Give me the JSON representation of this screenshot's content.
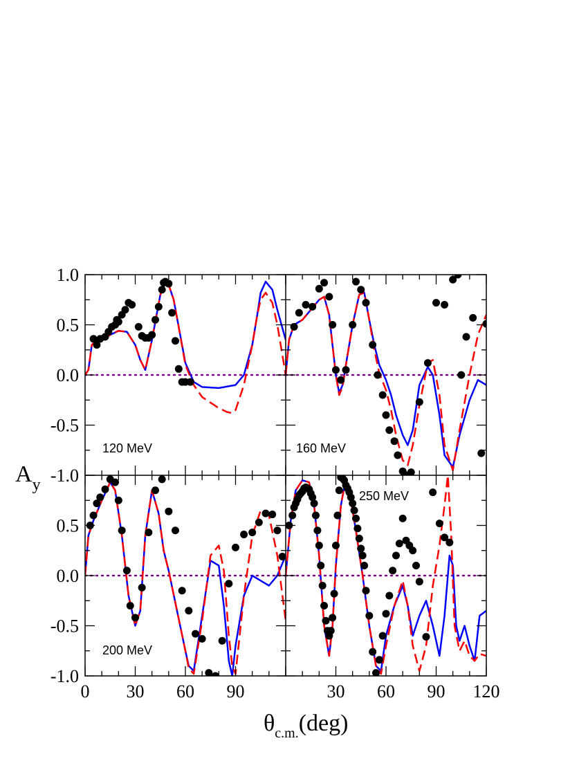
{
  "chart_data": {
    "type": "line",
    "xlabel": "θc.m.(deg)",
    "xlabel_main": "θ",
    "xlabel_sub": "c.m.",
    "xlabel_unit": "(deg)",
    "ylabel": "Ay",
    "ylabel_main": "A",
    "ylabel_sub": "y",
    "xlim": [
      0,
      120
    ],
    "ylim": [
      -1.0,
      1.0
    ],
    "x_tick_labels": [
      "0",
      "30",
      "60",
      "90",
      "120"
    ],
    "y_tick_labels": [
      "1.0",
      "0.5",
      "0.0",
      "-0.5",
      "-1.0"
    ],
    "layout": "2x2 shared axes",
    "panels": [
      {
        "label": "120 MeV",
        "series": [
          {
            "style": "solid",
            "color": "#0000ff",
            "x": [
              0,
              2,
              4,
              6,
              10,
              15,
              20,
              25,
              30,
              33,
              36,
              40,
              45,
              48,
              50,
              53,
              56,
              60,
              65,
              70,
              80,
              90,
              95,
              100,
              103,
              105,
              108,
              112,
              115,
              120
            ],
            "y": [
              0,
              0.05,
              0.3,
              0.33,
              0.35,
              0.4,
              0.44,
              0.43,
              0.3,
              0.15,
              0.05,
              0.35,
              0.8,
              0.92,
              0.9,
              0.75,
              0.48,
              0.12,
              -0.07,
              -0.12,
              -0.13,
              -0.1,
              0,
              0.3,
              0.6,
              0.82,
              0.93,
              0.85,
              0.65,
              0.35
            ]
          },
          {
            "style": "dashed",
            "color": "#ff0000",
            "x": [
              0,
              2,
              4,
              6,
              10,
              15,
              20,
              25,
              30,
              33,
              36,
              40,
              45,
              48,
              50,
              53,
              56,
              60,
              65,
              70,
              80,
              85,
              88,
              90,
              95,
              100,
              103,
              105,
              108,
              112,
              115,
              120
            ],
            "y": [
              0,
              0.05,
              0.3,
              0.33,
              0.35,
              0.4,
              0.44,
              0.43,
              0.3,
              0.15,
              0.05,
              0.35,
              0.8,
              0.92,
              0.9,
              0.75,
              0.48,
              0.1,
              -0.1,
              -0.22,
              -0.33,
              -0.37,
              -0.38,
              -0.35,
              -0.1,
              0.3,
              0.6,
              0.75,
              0.82,
              0.72,
              0.5,
              0.0
            ]
          },
          {
            "style": "points",
            "color": "#000000",
            "x": [
              5,
              7,
              9,
              12,
              14,
              16,
              18,
              19,
              20,
              22,
              24,
              26,
              28,
              32,
              34,
              36,
              38,
              40,
              42,
              44,
              46,
              47,
              48,
              50,
              52,
              54,
              56,
              58,
              60,
              63
            ],
            "y": [
              0.36,
              0.3,
              0.36,
              0.38,
              0.43,
              0.48,
              0.5,
              0.55,
              0.53,
              0.6,
              0.65,
              0.72,
              0.7,
              0.48,
              0.39,
              0.37,
              0.37,
              0.4,
              0.55,
              0.68,
              0.85,
              0.92,
              0.93,
              0.91,
              0.62,
              0.34,
              0.06,
              -0.07,
              -0.07,
              -0.07
            ]
          }
        ]
      },
      {
        "label": "160 MeV",
        "series": [
          {
            "style": "solid",
            "color": "#0000ff",
            "x": [
              0,
              2,
              5,
              10,
              15,
              20,
              23,
              26,
              30,
              32,
              34,
              37,
              40,
              44,
              47,
              50,
              53,
              56,
              60,
              63,
              66,
              70,
              73,
              76,
              80,
              85,
              88,
              92,
              95,
              100,
              104,
              110,
              115,
              120
            ],
            "y": [
              0,
              0.35,
              0.5,
              0.55,
              0.65,
              0.75,
              0.78,
              0.6,
              0.0,
              -0.18,
              -0.1,
              0.2,
              0.5,
              0.8,
              0.82,
              0.55,
              0.3,
              0.1,
              -0.05,
              -0.2,
              -0.4,
              -0.6,
              -0.7,
              -0.55,
              -0.1,
              0.08,
              0.0,
              -0.4,
              -0.8,
              -0.92,
              -0.6,
              -0.25,
              -0.05,
              -0.1
            ]
          },
          {
            "style": "dashed",
            "color": "#ff0000",
            "x": [
              0,
              2,
              5,
              10,
              15,
              20,
              23,
              26,
              30,
              32,
              34,
              37,
              40,
              44,
              47,
              50,
              53,
              56,
              60,
              63,
              66,
              70,
              73,
              76,
              80,
              85,
              88,
              92,
              95,
              100,
              104,
              110,
              115,
              120
            ],
            "y": [
              0,
              0.35,
              0.5,
              0.55,
              0.65,
              0.75,
              0.78,
              0.6,
              0.0,
              -0.2,
              -0.12,
              0.2,
              0.5,
              0.8,
              0.82,
              0.55,
              0.25,
              0.02,
              -0.15,
              -0.35,
              -0.6,
              -0.85,
              -0.9,
              -0.7,
              -0.3,
              0.12,
              0.15,
              -0.2,
              -0.7,
              -0.95,
              -0.55,
              0.0,
              0.4,
              0.6
            ]
          },
          {
            "style": "points",
            "color": "#000000",
            "x": [
              5,
              8,
              12,
              16,
              20,
              23,
              26,
              28,
              30,
              33,
              36,
              40,
              42,
              45,
              48,
              52,
              55,
              58,
              60,
              62,
              65,
              67,
              70,
              72,
              75,
              80,
              85,
              90,
              95,
              100,
              103,
              105,
              108,
              112,
              117,
              120
            ],
            "y": [
              0.48,
              0.62,
              0.7,
              0.68,
              0.86,
              0.92,
              0.78,
              0.5,
              0.05,
              -0.05,
              0.05,
              0.5,
              0.93,
              0.85,
              0.72,
              0.3,
              0.0,
              -0.2,
              -0.4,
              -0.55,
              -0.66,
              -0.8,
              -0.96,
              -1.0,
              -0.97,
              -0.27,
              0.12,
              0.72,
              0.7,
              0.95,
              1.0,
              0.0,
              0.38,
              0.57,
              -0.78,
              0.51
            ]
          }
        ]
      },
      {
        "label": "200 MeV",
        "series": [
          {
            "style": "solid",
            "color": "#0000ff",
            "x": [
              0,
              2,
              5,
              10,
              15,
              18,
              22,
              26,
              30,
              33,
              36,
              40,
              44,
              47,
              50,
              55,
              60,
              62,
              65,
              70,
              75,
              80,
              83,
              86,
              88,
              90,
              95,
              100,
              105,
              110,
              115,
              120
            ],
            "y": [
              0,
              0.4,
              0.55,
              0.75,
              0.93,
              0.85,
              0.4,
              -0.2,
              -0.5,
              -0.35,
              0.4,
              0.85,
              0.62,
              0.25,
              0.05,
              -0.35,
              -0.75,
              -0.9,
              -0.95,
              -0.4,
              0.15,
              0.1,
              -0.3,
              -0.85,
              -1.0,
              -0.7,
              -0.2,
              0.0,
              -0.05,
              -0.1,
              0.0,
              0.2
            ]
          },
          {
            "style": "dashed",
            "color": "#ff0000",
            "x": [
              0,
              2,
              5,
              10,
              15,
              18,
              22,
              26,
              30,
              33,
              36,
              40,
              44,
              47,
              50,
              55,
              60,
              62,
              65,
              70,
              75,
              80,
              83,
              86,
              88,
              90,
              95,
              100,
              105,
              110,
              115,
              120
            ],
            "y": [
              0,
              0.4,
              0.55,
              0.75,
              0.93,
              0.85,
              0.4,
              -0.2,
              -0.5,
              -0.35,
              0.4,
              0.85,
              0.62,
              0.25,
              0.05,
              -0.35,
              -0.75,
              -0.92,
              -0.98,
              -0.45,
              0.2,
              0.3,
              0.05,
              -0.6,
              -0.9,
              -0.98,
              -0.2,
              0.4,
              0.65,
              0.6,
              0.2,
              -0.45
            ]
          },
          {
            "style": "points",
            "color": "#000000",
            "x": [
              3,
              5,
              7,
              9,
              12,
              15,
              18,
              20,
              22,
              25,
              27,
              30,
              34,
              38,
              42,
              46,
              50,
              54,
              58,
              62,
              66,
              70,
              74,
              78,
              82,
              86,
              90,
              95,
              100,
              104,
              108,
              112,
              115,
              118
            ],
            "y": [
              0.5,
              0.6,
              0.72,
              0.78,
              0.86,
              0.96,
              0.93,
              0.75,
              0.45,
              0.05,
              -0.3,
              -0.42,
              -0.12,
              0.43,
              0.85,
              0.96,
              0.64,
              0.45,
              -0.15,
              -0.35,
              -0.58,
              -0.63,
              -0.97,
              -1.0,
              -0.65,
              -0.08,
              0.28,
              0.41,
              0.43,
              0.53,
              0.62,
              0.61,
              0.45,
              0.19
            ]
          }
        ]
      },
      {
        "label": "250 MeV",
        "series": [
          {
            "style": "solid",
            "color": "#0000ff",
            "x": [
              0,
              3,
              6,
              10,
              14,
              17,
              20,
              23,
              26,
              28,
              30,
              33,
              36,
              38,
              42,
              46,
              50,
              54,
              57,
              60,
              65,
              70,
              73,
              76,
              80,
              84,
              88,
              92,
              95,
              98,
              100,
              102,
              104,
              107,
              110,
              113,
              116,
              120
            ],
            "y": [
              0,
              0.55,
              0.85,
              0.95,
              0.93,
              0.7,
              0.2,
              -0.5,
              -0.8,
              -0.5,
              0.1,
              0.7,
              0.97,
              0.85,
              0.45,
              0.0,
              -0.5,
              -0.9,
              -0.95,
              -0.6,
              -0.3,
              -0.1,
              -0.3,
              -0.6,
              -0.4,
              -0.25,
              -0.5,
              -0.8,
              -0.4,
              0.2,
              0.1,
              -0.5,
              -0.65,
              -0.5,
              -0.7,
              -0.85,
              -0.4,
              -0.35
            ]
          },
          {
            "style": "dashed",
            "color": "#ff0000",
            "x": [
              0,
              3,
              6,
              10,
              14,
              17,
              20,
              23,
              26,
              28,
              30,
              33,
              36,
              38,
              42,
              46,
              50,
              54,
              57,
              60,
              65,
              70,
              73,
              76,
              80,
              84,
              88,
              92,
              95,
              97,
              99,
              101,
              104,
              107,
              110,
              113,
              116,
              120
            ],
            "y": [
              0,
              0.55,
              0.85,
              0.95,
              0.93,
              0.7,
              0.2,
              -0.5,
              -0.8,
              -0.5,
              0.1,
              0.7,
              0.97,
              0.85,
              0.45,
              0.0,
              -0.5,
              -0.9,
              -0.98,
              -0.7,
              -0.3,
              -0.05,
              -0.3,
              -0.7,
              -0.95,
              -0.7,
              -0.1,
              0.3,
              0.7,
              1.0,
              0.4,
              -0.5,
              -0.75,
              -0.65,
              -0.8,
              -0.85,
              -0.78,
              -0.8
            ]
          },
          {
            "style": "points",
            "color": "#000000",
            "x": [
              2,
              4,
              5,
              6,
              7,
              8,
              9,
              10,
              11,
              12,
              13,
              14,
              15,
              16,
              17,
              18,
              19,
              20,
              21,
              22,
              23,
              24,
              25,
              26,
              27,
              28,
              29,
              30,
              31,
              32,
              33,
              34,
              35,
              36,
              37,
              38,
              39,
              40,
              41,
              42,
              43,
              44,
              45,
              46,
              47,
              48,
              50,
              52,
              54,
              56,
              58,
              60,
              62,
              64,
              66,
              68,
              70,
              72,
              74,
              76,
              78,
              80,
              84,
              88,
              92,
              95,
              98
            ],
            "y": [
              0.5,
              0.6,
              0.68,
              0.72,
              0.76,
              0.8,
              0.82,
              0.84,
              0.87,
              0.88,
              0.87,
              0.86,
              0.82,
              0.78,
              0.72,
              0.6,
              0.45,
              0.3,
              0.1,
              -0.1,
              -0.3,
              -0.45,
              -0.55,
              -0.6,
              -0.55,
              -0.42,
              -0.18,
              0.3,
              0.6,
              0.85,
              0.98,
              0.97,
              0.95,
              0.9,
              0.87,
              0.83,
              0.78,
              0.72,
              0.65,
              0.57,
              0.47,
              0.37,
              0.27,
              0.2,
              0.1,
              -0.15,
              -0.4,
              -0.76,
              -0.97,
              -0.84,
              -0.6,
              -0.38,
              -0.2,
              0.05,
              0.2,
              0.32,
              0.57,
              0.35,
              0.3,
              0.25,
              0.1,
              -0.06,
              -0.61,
              0.83,
              0.52,
              0.38,
              0.33
            ]
          }
        ]
      }
    ]
  }
}
